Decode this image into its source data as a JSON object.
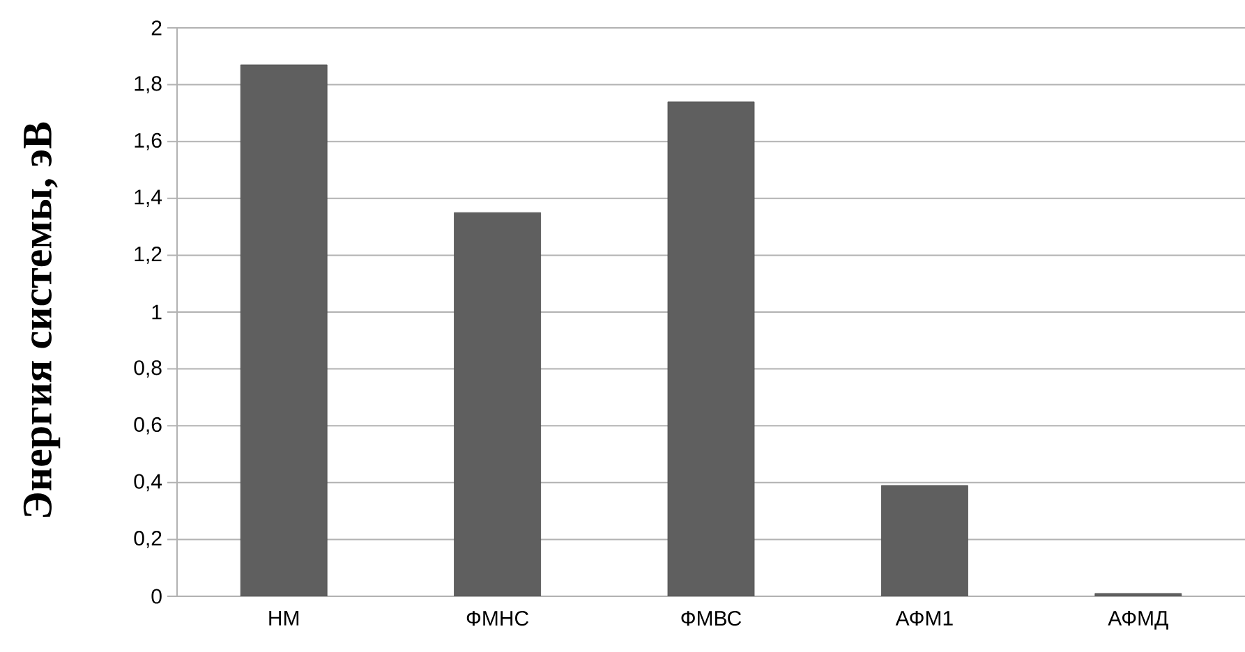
{
  "chart_data": {
    "type": "bar",
    "ylabel": "Энергия системы, эВ",
    "categories": [
      "НМ",
      "ФМНС",
      "ФМВС",
      "АФМ1",
      "АФМД"
    ],
    "values": [
      1.87,
      1.35,
      1.74,
      0.39,
      0.01
    ],
    "color": "#5f5f5f",
    "ylim": [
      0,
      2
    ],
    "yticks": [
      0,
      {
        "value": 0.2,
        "label": "0,2"
      },
      {
        "value": 0.4,
        "label": "0,4"
      },
      {
        "value": 0.6,
        "label": "0,6"
      },
      {
        "value": 0.8,
        "label": "0,8"
      },
      1,
      {
        "value": 1.2,
        "label": "1,2"
      },
      {
        "value": 1.4,
        "label": "1,4"
      },
      {
        "value": 1.6,
        "label": "1,6"
      },
      {
        "value": 1.8,
        "label": "1,8"
      },
      2
    ],
    "grid": "y"
  }
}
